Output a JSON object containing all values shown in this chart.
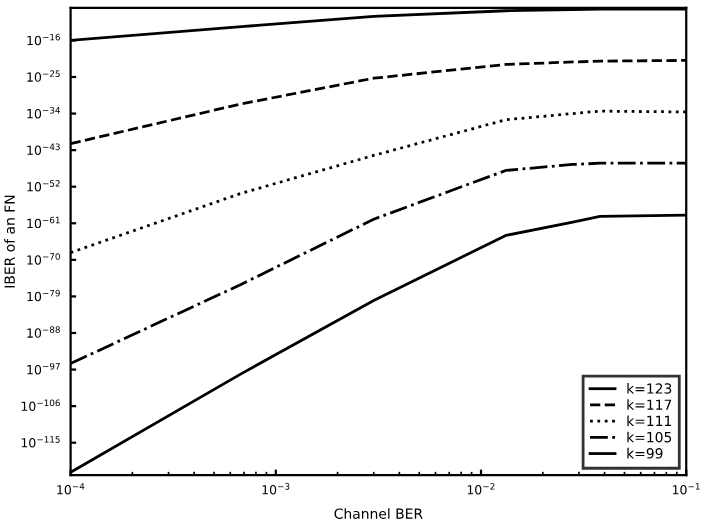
{
  "chart_data": {
    "type": "line",
    "xlabel": "Channel BER",
    "ylabel": "IBER of an FN",
    "log": "xy",
    "grid": false,
    "legend": "bottom right",
    "xlim": [
      0.0001,
      0.1
    ],
    "xticks": [
      {
        "value": 0.0001,
        "label": "10$^{−4}$"
      },
      {
        "value": 0.001,
        "label": "10$^{−3}$"
      },
      {
        "value": 0.01,
        "label": "10$^{−2}$"
      },
      {
        "value": 0.1,
        "label": "10$^{−1}$"
      }
    ],
    "ylim": [
      1e-123,
      1e-08
    ],
    "yticks": [
      {
        "value": 1e-16,
        "label": "10$^{−16}$"
      },
      {
        "value": 1e-25,
        "label": "10$^{−25}$"
      },
      {
        "value": 1e-34,
        "label": "10$^{−34}$"
      },
      {
        "value": 1e-43,
        "label": "10$^{−43}$"
      },
      {
        "value": 1e-52,
        "label": "10$^{−52}$"
      },
      {
        "value": 1e-61,
        "label": "10$^{−61}$"
      },
      {
        "value": 1e-70,
        "label": "10$^{−70}$"
      },
      {
        "value": 1e-79,
        "label": "10$^{−79}$"
      },
      {
        "value": 1e-88,
        "label": "10$^{−88}$"
      },
      {
        "value": 1e-97,
        "label": "10$^{−97}$"
      },
      {
        "value": 1e-106,
        "label": "10$^{−106}$"
      },
      {
        "value": 1e-115,
        "label": "10$^{−115}$"
      }
    ],
    "x": [
      0.0001,
      0.00068,
      0.003,
      0.0132,
      0.028,
      0.038,
      0.1
    ],
    "series": [
      {
        "name": "k=123",
        "color": "#000000",
        "line_style": "solid",
        "values": [
          1e-16,
          2.5e-13,
          8e-11,
          2e-09,
          4e-09,
          5e-09,
          5e-09
        ]
      },
      {
        "name": "k=117",
        "color": "#000000",
        "line_style": "dashed",
        "values": [
          4e-42,
          2.5e-32,
          5e-26,
          1.2e-22,
          5e-22,
          8e-22,
          1.2e-21
        ]
      },
      {
        "name": "k=111",
        "color": "#000000",
        "line_style": "dotted",
        "values": [
          6e-69,
          2.5e-54,
          5e-45,
          3e-36,
          1e-34,
          4e-34,
          2.5e-34
        ]
      },
      {
        "name": "k=105",
        "color": "#000000",
        "line_style": "dashdot",
        "values": [
          3e-96,
          1e-76,
          1e-60,
          1e-48,
          3e-47,
          6e-47,
          6e-47
        ]
      },
      {
        "name": "k=99",
        "color": "#000000",
        "line_style": "solid",
        "values": [
          5e-123,
          1e-98,
          1e-80,
          1e-64,
          2e-61,
          5e-60,
          1e-59
        ]
      }
    ]
  }
}
